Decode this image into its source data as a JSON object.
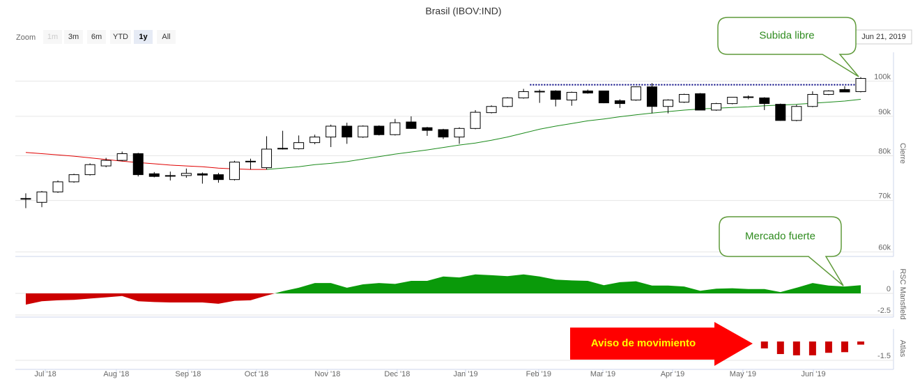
{
  "zoom": {
    "label": "Zoom",
    "buttons": [
      "1m",
      "3m",
      "6m",
      "YTD",
      "1y",
      "All"
    ],
    "selected": 4,
    "disabled": [
      0
    ]
  },
  "date": "Jun 21, 2019",
  "chart_data": [
    {
      "type": "candlestick",
      "title": "Brasil (IBOV:IND)",
      "y_label": "Cierre",
      "log_scale": true,
      "grid": true,
      "xlim": [
        -0.65,
        54.04
      ],
      "ylim": [
        59200,
        109000
      ],
      "yticks": [
        {
          "value": 60000,
          "label": "60k"
        },
        {
          "value": 70000,
          "label": "70k"
        },
        {
          "value": 80000,
          "label": "80k"
        },
        {
          "value": 90000,
          "label": "90k"
        },
        {
          "value": 100000,
          "label": "100k"
        }
      ],
      "open": [
        70300,
        69600,
        71800,
        74000,
        75600,
        77600,
        78900,
        80500,
        75800,
        75300,
        75400,
        75800,
        75600,
        74500,
        78600,
        77200,
        81700,
        81700,
        83200,
        84600,
        87400,
        84600,
        87400,
        85200,
        88500,
        87000,
        86500,
        84600,
        86800,
        91000,
        92700,
        95100,
        96900,
        97100,
        94500,
        97100,
        97100,
        94300,
        94500,
        98300,
        92700,
        93900,
        96300,
        91700,
        93500,
        95300,
        95100,
        93300,
        88900,
        92700,
        96100,
        97500,
        96900
      ],
      "high": [
        71500,
        72000,
        74300,
        75800,
        78200,
        79500,
        81000,
        80700,
        76200,
        76300,
        77000,
        76100,
        76000,
        78800,
        79300,
        84800,
        86200,
        85000,
        85200,
        87800,
        88300,
        87600,
        87600,
        89300,
        90000,
        87200,
        86700,
        87100,
        91700,
        93000,
        95300,
        97700,
        97500,
        97300,
        96900,
        97500,
        97200,
        94700,
        98400,
        99400,
        94700,
        96300,
        96500,
        93700,
        95300,
        95800,
        95300,
        93500,
        93200,
        97000,
        97300,
        98500,
        101200
      ],
      "low": [
        68400,
        68600,
        71600,
        73800,
        75400,
        77300,
        78700,
        75200,
        75000,
        74300,
        74900,
        73600,
        73800,
        74300,
        76800,
        76800,
        81500,
        81500,
        82800,
        82100,
        82900,
        84400,
        85000,
        85000,
        86700,
        84900,
        84100,
        82900,
        86600,
        90800,
        92500,
        94900,
        93700,
        92700,
        92900,
        96300,
        93600,
        92300,
        94300,
        90800,
        90800,
        93700,
        91700,
        91500,
        93300,
        94700,
        91700,
        88800,
        88700,
        92500,
        95900,
        96800,
        96700
      ],
      "close": [
        70400,
        71800,
        74000,
        75600,
        77900,
        78900,
        80500,
        75600,
        75200,
        75400,
        75900,
        75500,
        74500,
        78500,
        78700,
        81600,
        81800,
        83200,
        84600,
        87400,
        84600,
        87400,
        85200,
        88300,
        86800,
        86300,
        84600,
        86800,
        91100,
        92700,
        95100,
        96900,
        97000,
        94700,
        96700,
        96500,
        93700,
        93500,
        98300,
        92700,
        94500,
        96100,
        91700,
        93500,
        95300,
        95400,
        93500,
        88900,
        92700,
        96100,
        97100,
        96800,
        100800
      ],
      "ma": [
        {
          "color": "#e00000",
          "values": [
            80800,
            80500,
            80200,
            79900,
            79500,
            79100,
            78700,
            78400,
            78100,
            77800,
            77600,
            77400,
            77100,
            76900,
            76800,
            76800,
            null,
            null,
            null,
            null,
            null,
            null,
            null,
            null,
            null,
            null,
            null,
            null,
            null,
            null,
            null,
            null,
            null,
            null,
            null,
            null,
            null,
            null,
            null,
            null,
            null,
            null,
            null,
            null,
            null,
            null,
            null,
            null,
            null,
            null,
            null,
            null,
            null
          ]
        },
        {
          "color": "#1a8a1a",
          "values": [
            null,
            null,
            null,
            null,
            null,
            null,
            null,
            null,
            null,
            null,
            null,
            null,
            null,
            null,
            null,
            76800,
            77100,
            77400,
            77900,
            78200,
            78600,
            79200,
            79800,
            80400,
            80900,
            81400,
            82000,
            82600,
            83100,
            83800,
            84600,
            85600,
            86600,
            87400,
            88100,
            88800,
            89300,
            89900,
            90400,
            90900,
            91300,
            91700,
            92000,
            92200,
            92400,
            92600,
            92900,
            93100,
            93300,
            93600,
            93900,
            94200,
            94700
          ]
        }
      ],
      "resistance": {
        "value": 98900,
        "from": 31.4,
        "to": 52,
        "color": "#000080"
      },
      "annotations": [
        "Subida libre",
        "Mercado fuerte"
      ]
    },
    {
      "type": "area",
      "y_label": "RSC Mansfield",
      "xlim": [
        -0.65,
        54.04
      ],
      "ylim": [
        -2.74,
        2.66
      ],
      "yticks": [
        0,
        -2.5
      ],
      "color_positive": "#0a9a0a",
      "color_negative": "#cc0000",
      "values": [
        -1.3,
        -0.9,
        -0.8,
        -0.75,
        -0.6,
        -0.45,
        -0.3,
        -0.9,
        -1.0,
        -1.05,
        -1.05,
        -1.05,
        -1.2,
        -0.85,
        -0.8,
        -0.25,
        0.25,
        0.65,
        1.2,
        1.2,
        0.65,
        1.05,
        1.2,
        1.1,
        1.45,
        1.45,
        1.95,
        1.85,
        2.2,
        2.1,
        2.0,
        2.2,
        1.95,
        1.6,
        1.5,
        1.45,
        0.95,
        1.3,
        1.4,
        0.9,
        0.9,
        0.8,
        0.3,
        0.55,
        0.6,
        0.5,
        0.5,
        0.15,
        0.65,
        1.2,
        0.9,
        0.8,
        0.95
      ]
    },
    {
      "type": "bar",
      "y_label": "Atlas",
      "xlim": [
        -0.65,
        54.04
      ],
      "ylim": [
        -2.22,
        1.0
      ],
      "yticks": [
        -1.5
      ],
      "color": "#cc0000",
      "xticks": [
        {
          "value": 1.22,
          "label": "Jul '18"
        },
        {
          "value": 5.64,
          "label": "Aug '18"
        },
        {
          "value": 10.11,
          "label": "Sep '18"
        },
        {
          "value": 14.37,
          "label": "Oct '18"
        },
        {
          "value": 18.79,
          "label": "Nov '18"
        },
        {
          "value": 23.13,
          "label": "Dec '18"
        },
        {
          "value": 27.39,
          "label": "Jan '19"
        },
        {
          "value": 31.94,
          "label": "Feb '19"
        },
        {
          "value": 35.94,
          "label": "Mar '19"
        },
        {
          "value": 40.28,
          "label": "Apr '19"
        },
        {
          "value": 44.66,
          "label": "May '19"
        },
        {
          "value": 49.05,
          "label": "Jun '19"
        }
      ],
      "values": [
        null,
        null,
        null,
        null,
        null,
        null,
        null,
        null,
        null,
        null,
        null,
        null,
        null,
        null,
        null,
        null,
        null,
        null,
        null,
        null,
        null,
        null,
        null,
        null,
        null,
        null,
        null,
        null,
        null,
        null,
        null,
        null,
        null,
        null,
        null,
        null,
        null,
        null,
        null,
        null,
        null,
        null,
        null,
        null,
        null,
        null,
        -0.55,
        -1.0,
        -1.1,
        -1.1,
        -0.9,
        -0.85,
        -0.25
      ],
      "annotation": "Aviso de movimiento"
    }
  ]
}
